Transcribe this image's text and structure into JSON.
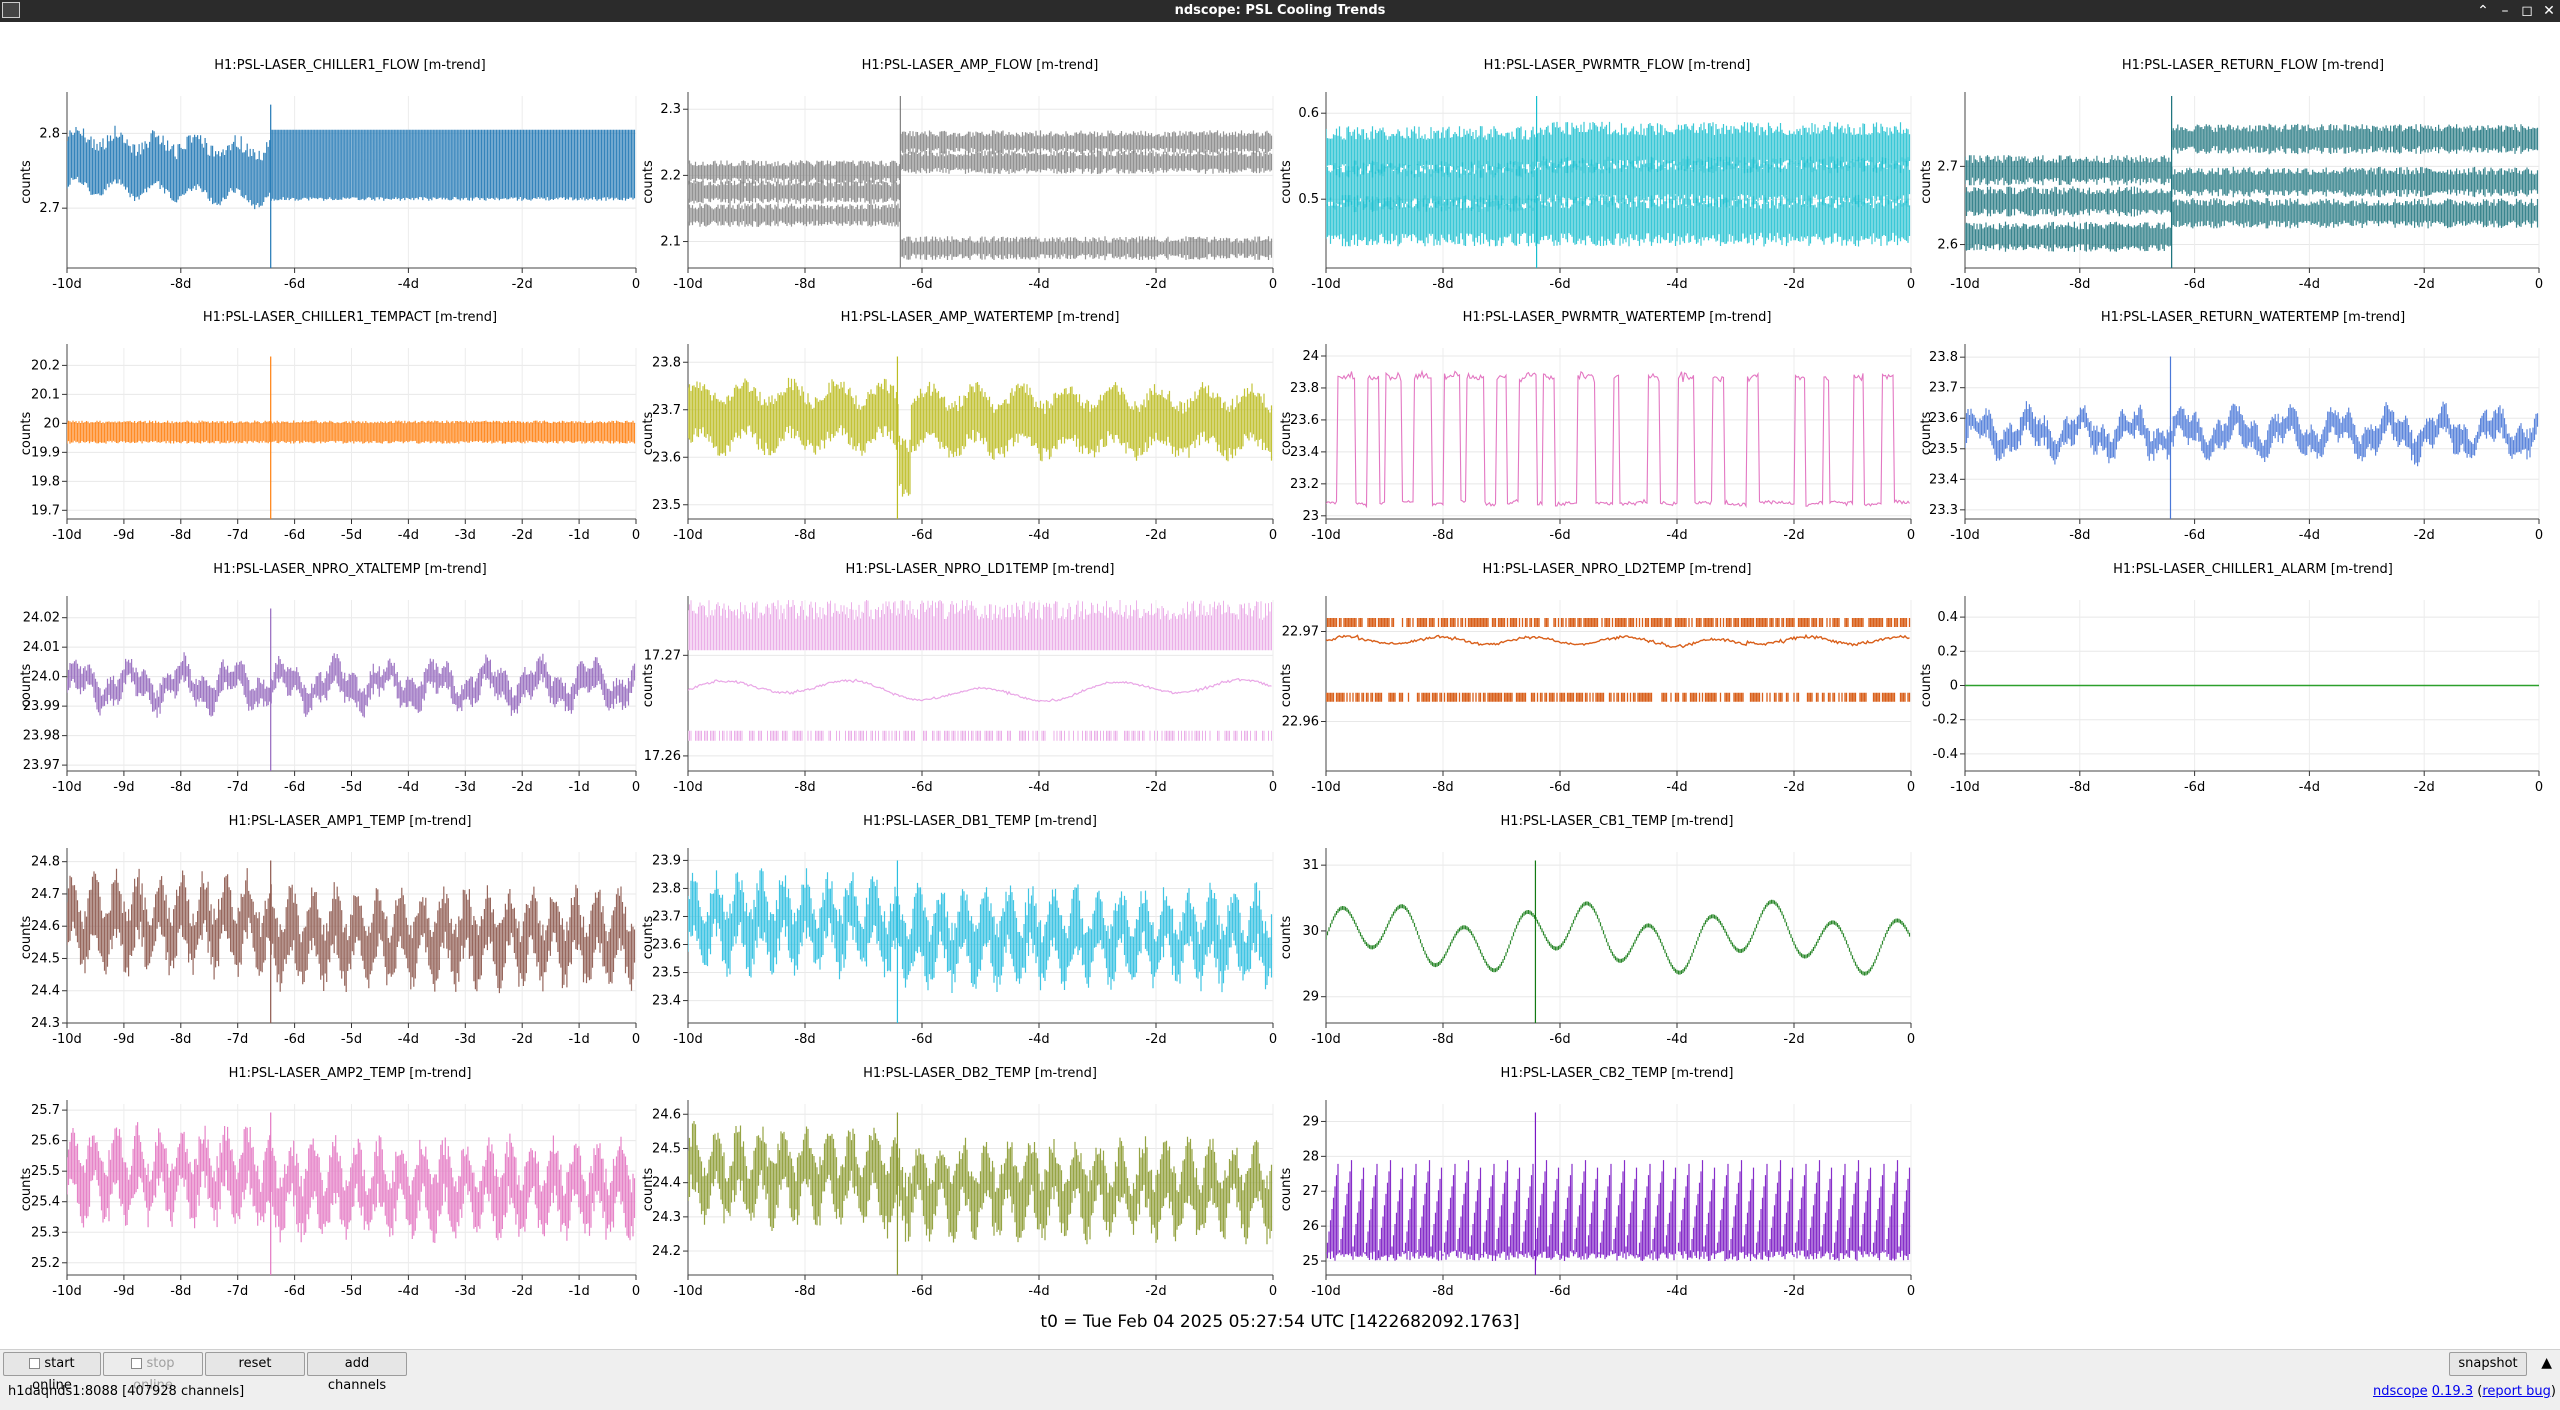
{
  "window": {
    "title": "ndscope: PSL Cooling Trends"
  },
  "footer": {
    "t0": "t0 = Tue Feb 04 2025 05:27:54 UTC [1422682092.1763]",
    "start_online": "start online",
    "stop_online": "stop online",
    "reset": "reset",
    "add_channels": "add channels",
    "snapshot": "snapshot",
    "server": "h1daqnds1:8088  [407928 channels]",
    "app_name": "ndscope",
    "version": "0.19.3",
    "report_bug": "report bug"
  },
  "plots": [
    {
      "title": "H1:PSL-LASER_CHILLER1_FLOW [m-trend]",
      "ylabel": "counts",
      "color": "#1f77b4",
      "style": "chiller_flow",
      "yrange": [
        2.62,
        2.85
      ],
      "yticks": [
        "2.7",
        "2.8"
      ],
      "ytick_values": [
        2.7,
        2.8
      ],
      "xticks": [
        "-10d",
        "-8d",
        "-6d",
        "-4d",
        "-2d",
        "0"
      ]
    },
    {
      "title": "H1:PSL-LASER_AMP_FLOW [m-trend]",
      "ylabel": "counts",
      "color": "#7f7f7f",
      "style": "bands_step",
      "yrange": [
        2.06,
        2.32
      ],
      "yticks": [
        "2.1",
        "2.2",
        "2.3"
      ],
      "ytick_values": [
        2.1,
        2.2,
        2.3
      ],
      "xticks": [
        "-10d",
        "-8d",
        "-6d",
        "-4d",
        "-2d",
        "0"
      ]
    },
    {
      "title": "H1:PSL-LASER_PWRMTR_FLOW [m-trend]",
      "ylabel": "counts",
      "color": "#17becf",
      "style": "bands_flat",
      "yrange": [
        0.42,
        0.62
      ],
      "yticks": [
        "0.5",
        "0.6"
      ],
      "ytick_values": [
        0.5,
        0.6
      ],
      "xticks": [
        "-10d",
        "-8d",
        "-6d",
        "-4d",
        "-2d",
        "0"
      ]
    },
    {
      "title": "H1:PSL-LASER_RETURN_FLOW [m-trend]",
      "ylabel": "counts",
      "color": "#17707a",
      "style": "bands_step2",
      "yrange": [
        2.57,
        2.79
      ],
      "yticks": [
        "2.6",
        "2.7"
      ],
      "ytick_values": [
        2.6,
        2.7
      ],
      "xticks": [
        "-10d",
        "-8d",
        "-6d",
        "-4d",
        "-2d",
        "0"
      ]
    },
    {
      "title": "H1:PSL-LASER_CHILLER1_TEMPACT [m-trend]",
      "ylabel": "counts",
      "color": "#ff7f0e",
      "style": "dense_band",
      "yrange": [
        19.67,
        20.26
      ],
      "yticks": [
        "19.7",
        "19.8",
        "19.9",
        "20",
        "20.1",
        "20.2"
      ],
      "ytick_values": [
        19.7,
        19.8,
        19.9,
        20.0,
        20.1,
        20.2
      ],
      "xticks": [
        "-10d",
        "-9d",
        "-8d",
        "-7d",
        "-6d",
        "-5d",
        "-4d",
        "-3d",
        "-2d",
        "-1d",
        "0"
      ]
    },
    {
      "title": "H1:PSL-LASER_AMP_WATERTEMP [m-trend]",
      "ylabel": "counts",
      "color": "#bcbd22",
      "style": "noisy",
      "yrange": [
        23.47,
        23.83
      ],
      "yticks": [
        "23.5",
        "23.6",
        "23.7",
        "23.8"
      ],
      "ytick_values": [
        23.5,
        23.6,
        23.7,
        23.8
      ],
      "xticks": [
        "-10d",
        "-8d",
        "-6d",
        "-4d",
        "-2d",
        "0"
      ]
    },
    {
      "title": "H1:PSL-LASER_PWRMTR_WATERTEMP [m-trend]",
      "ylabel": "counts",
      "color": "#e377c2",
      "style": "square",
      "yrange": [
        22.98,
        24.05
      ],
      "yticks": [
        "23",
        "23.2",
        "23.4",
        "23.6",
        "23.8",
        "24"
      ],
      "ytick_values": [
        23.0,
        23.2,
        23.4,
        23.6,
        23.8,
        24.0
      ],
      "xticks": [
        "-10d",
        "-8d",
        "-6d",
        "-4d",
        "-2d",
        "0"
      ]
    },
    {
      "title": "H1:PSL-LASER_RETURN_WATERTEMP [m-trend]",
      "ylabel": "counts",
      "color": "#4a78d8",
      "style": "thin_noisy",
      "yrange": [
        23.27,
        23.83
      ],
      "yticks": [
        "23.3",
        "23.4",
        "23.5",
        "23.6",
        "23.7",
        "23.8"
      ],
      "ytick_values": [
        23.3,
        23.4,
        23.5,
        23.6,
        23.7,
        23.8
      ],
      "xticks": [
        "-10d",
        "-8d",
        "-6d",
        "-4d",
        "-2d",
        "0"
      ]
    },
    {
      "title": "H1:PSL-LASER_NPRO_XTALTEMP [m-trend]",
      "ylabel": "counts",
      "color": "#9467bd",
      "style": "thin_noisy",
      "yrange": [
        23.968,
        24.026
      ],
      "yticks": [
        "23.97",
        "23.98",
        "23.99",
        "24.0",
        "24.01",
        "24.02"
      ],
      "ytick_values": [
        23.97,
        23.98,
        23.99,
        24.0,
        24.01,
        24.02
      ],
      "xticks": [
        "-10d",
        "-9d",
        "-8d",
        "-7d",
        "-6d",
        "-5d",
        "-4d",
        "-3d",
        "-2d",
        "-1d",
        "0"
      ]
    },
    {
      "title": "H1:PSL-LASER_NPRO_LD1TEMP [m-trend]",
      "ylabel": "counts",
      "color": "#e9a6e6",
      "style": "ld1",
      "yrange": [
        17.2585,
        17.2755
      ],
      "yticks": [
        "17.26",
        "17.27"
      ],
      "ytick_values": [
        17.26,
        17.27
      ],
      "xticks": [
        "-10d",
        "-8d",
        "-6d",
        "-4d",
        "-2d",
        "0"
      ]
    },
    {
      "title": "H1:PSL-LASER_NPRO_LD2TEMP [m-trend]",
      "ylabel": "counts",
      "color": "#d95f1a",
      "style": "ld2",
      "yrange": [
        22.9545,
        22.9735
      ],
      "yticks": [
        "22.96",
        "22.97"
      ],
      "ytick_values": [
        22.96,
        22.97
      ],
      "xticks": [
        "-10d",
        "-8d",
        "-6d",
        "-4d",
        "-2d",
        "0"
      ]
    },
    {
      "title": "H1:PSL-LASER_CHILLER1_ALARM [m-trend]",
      "ylabel": "counts",
      "color": "#2ca02c",
      "style": "flat",
      "yrange": [
        -0.5,
        0.5
      ],
      "yticks": [
        "-0.4",
        "-0.2",
        "0",
        "0.2",
        "0.4"
      ],
      "ytick_values": [
        -0.4,
        -0.2,
        0,
        0.2,
        0.4
      ],
      "xticks": [
        "-10d",
        "-8d",
        "-6d",
        "-4d",
        "-2d",
        "0"
      ]
    },
    {
      "title": "H1:PSL-LASER_AMP1_TEMP [m-trend]",
      "ylabel": "counts",
      "color": "#8c564b",
      "style": "noisy_osc",
      "yrange": [
        24.3,
        24.83
      ],
      "yticks": [
        "24.3",
        "24.4",
        "24.5",
        "24.6",
        "24.7",
        "24.8"
      ],
      "ytick_values": [
        24.3,
        24.4,
        24.5,
        24.6,
        24.7,
        24.8
      ],
      "xticks": [
        "-10d",
        "-9d",
        "-8d",
        "-7d",
        "-6d",
        "-5d",
        "-4d",
        "-3d",
        "-2d",
        "-1d",
        "0"
      ]
    },
    {
      "title": "H1:PSL-LASER_DB1_TEMP [m-trend]",
      "ylabel": "counts",
      "color": "#2bbfe0",
      "style": "noisy_osc",
      "yrange": [
        23.32,
        23.93
      ],
      "yticks": [
        "23.4",
        "23.5",
        "23.6",
        "23.7",
        "23.8",
        "23.9"
      ],
      "ytick_values": [
        23.4,
        23.5,
        23.6,
        23.7,
        23.8,
        23.9
      ],
      "xticks": [
        "-10d",
        "-8d",
        "-6d",
        "-4d",
        "-2d",
        "0"
      ]
    },
    {
      "title": "H1:PSL-LASER_CB1_TEMP [m-trend]",
      "ylabel": "counts",
      "color": "#137a13",
      "style": "slow_wave",
      "yrange": [
        28.6,
        31.2
      ],
      "yticks": [
        "29",
        "30",
        "31"
      ],
      "ytick_values": [
        29,
        30,
        31
      ],
      "xticks": [
        "-10d",
        "-8d",
        "-6d",
        "-4d",
        "-2d",
        "0"
      ]
    },
    {
      "title": "H1:PSL-LASER_AMP2_TEMP [m-trend]",
      "ylabel": "counts",
      "color": "#e377c2",
      "style": "noisy_osc",
      "yrange": [
        25.16,
        25.72
      ],
      "yticks": [
        "25.2",
        "25.3",
        "25.4",
        "25.5",
        "25.6",
        "25.7"
      ],
      "ytick_values": [
        25.2,
        25.3,
        25.4,
        25.5,
        25.6,
        25.7
      ],
      "xticks": [
        "-10d",
        "-9d",
        "-8d",
        "-7d",
        "-6d",
        "-5d",
        "-4d",
        "-3d",
        "-2d",
        "-1d",
        "0"
      ]
    },
    {
      "title": "H1:PSL-LASER_DB2_TEMP [m-trend]",
      "ylabel": "counts",
      "color": "#8b9a30",
      "style": "noisy_osc",
      "yrange": [
        24.13,
        24.63
      ],
      "yticks": [
        "24.2",
        "24.3",
        "24.4",
        "24.5",
        "24.6"
      ],
      "ytick_values": [
        24.2,
        24.3,
        24.4,
        24.5,
        24.6
      ],
      "xticks": [
        "-10d",
        "-8d",
        "-6d",
        "-4d",
        "-2d",
        "0"
      ]
    },
    {
      "title": "H1:PSL-LASER_CB2_TEMP [m-trend]",
      "ylabel": "counts",
      "color": "#7a17c4",
      "style": "sawtooth",
      "yrange": [
        24.6,
        29.5
      ],
      "yticks": [
        "25",
        "26",
        "27",
        "28",
        "29"
      ],
      "ytick_values": [
        25,
        26,
        27,
        28,
        29
      ],
      "xticks": [
        "-10d",
        "-8d",
        "-6d",
        "-4d",
        "-2d",
        "0"
      ]
    }
  ]
}
